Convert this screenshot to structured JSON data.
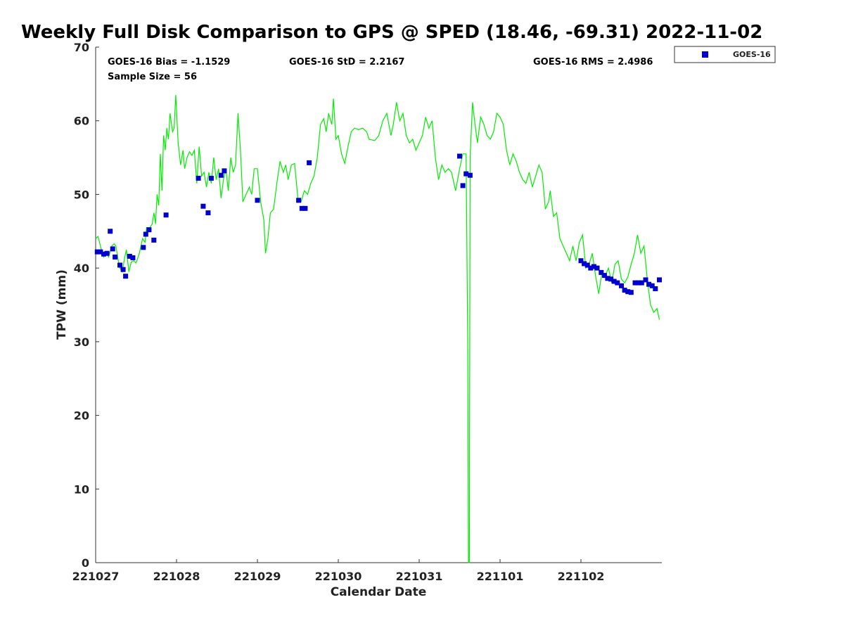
{
  "chart_data": {
    "type": "scatter",
    "title": "Weekly Full Disk Comparison to GPS @ SPED (18.46, -69.31) 2022-11-02",
    "xlabel": "Calendar Date",
    "ylabel": "TPW (mm)",
    "xlim": [
      0,
      7
    ],
    "ylim": [
      0,
      70
    ],
    "x_ticks": [
      0,
      1,
      2,
      3,
      4,
      5,
      6
    ],
    "x_tick_labels": [
      "221027",
      "221028",
      "221029",
      "221030",
      "221031",
      "221101",
      "221102"
    ],
    "y_ticks": [
      0,
      10,
      20,
      30,
      40,
      50,
      60,
      70
    ],
    "y_tick_labels": [
      "0",
      "10",
      "20",
      "30",
      "40",
      "50",
      "60",
      "70"
    ],
    "stats": {
      "bias": "GOES-16 Bias = -1.1529",
      "std": "GOES-16 StD = 2.2167",
      "rms": "GOES-16 RMS = 2.4986",
      "sample": "Sample Size = 56"
    },
    "legend": {
      "position": "outside-top-right",
      "entries": [
        "GOES-16"
      ]
    },
    "colors": {
      "gps": "#00ee00",
      "goes": "#0000cc"
    },
    "series": [
      {
        "name": "GPS",
        "style": "line",
        "points": [
          [
            0.0,
            44.0
          ],
          [
            0.03,
            44.3
          ],
          [
            0.07,
            42.5
          ],
          [
            0.1,
            41.5
          ],
          [
            0.13,
            42.0
          ],
          [
            0.16,
            41.5
          ],
          [
            0.2,
            43.0
          ],
          [
            0.23,
            43.3
          ],
          [
            0.25,
            43.0
          ],
          [
            0.28,
            41.0
          ],
          [
            0.3,
            40.0
          ],
          [
            0.33,
            39.5
          ],
          [
            0.36,
            41.5
          ],
          [
            0.38,
            42.5
          ],
          [
            0.41,
            39.5
          ],
          [
            0.44,
            40.8
          ],
          [
            0.47,
            41.0
          ],
          [
            0.5,
            40.7
          ],
          [
            0.54,
            42.0
          ],
          [
            0.58,
            44.0
          ],
          [
            0.61,
            43.5
          ],
          [
            0.63,
            45.5
          ],
          [
            0.67,
            45.5
          ],
          [
            0.7,
            46.0
          ],
          [
            0.72,
            47.5
          ],
          [
            0.74,
            46.0
          ],
          [
            0.76,
            50.0
          ],
          [
            0.78,
            48.5
          ],
          [
            0.8,
            55.5
          ],
          [
            0.82,
            50.5
          ],
          [
            0.84,
            58.0
          ],
          [
            0.86,
            56.0
          ],
          [
            0.88,
            59.0
          ],
          [
            0.9,
            57.5
          ],
          [
            0.92,
            61.0
          ],
          [
            0.95,
            58.5
          ],
          [
            0.97,
            59.0
          ],
          [
            0.99,
            63.5
          ],
          [
            1.02,
            57.0
          ],
          [
            1.05,
            54.0
          ],
          [
            1.08,
            56.0
          ],
          [
            1.1,
            53.5
          ],
          [
            1.13,
            55.0
          ],
          [
            1.16,
            55.8
          ],
          [
            1.19,
            55.3
          ],
          [
            1.22,
            56.0
          ],
          [
            1.25,
            51.5
          ],
          [
            1.28,
            56.5
          ],
          [
            1.31,
            52.5
          ],
          [
            1.34,
            53.0
          ],
          [
            1.37,
            51.0
          ],
          [
            1.4,
            53.0
          ],
          [
            1.43,
            51.5
          ],
          [
            1.46,
            55.0
          ],
          [
            1.49,
            52.0
          ],
          [
            1.52,
            53.5
          ],
          [
            1.55,
            49.5
          ],
          [
            1.58,
            52.0
          ],
          [
            1.61,
            53.5
          ],
          [
            1.64,
            50.5
          ],
          [
            1.67,
            55.0
          ],
          [
            1.7,
            53.0
          ],
          [
            1.73,
            54.0
          ],
          [
            1.76,
            61.0
          ],
          [
            1.79,
            56.0
          ],
          [
            1.82,
            49.0
          ],
          [
            1.86,
            50.0
          ],
          [
            1.9,
            51.0
          ],
          [
            1.93,
            50.0
          ],
          [
            1.96,
            53.5
          ],
          [
            2.0,
            53.5
          ],
          [
            2.04,
            49.0
          ],
          [
            2.08,
            46.5
          ],
          [
            2.1,
            42.0
          ],
          [
            2.13,
            44.0
          ],
          [
            2.16,
            47.5
          ],
          [
            2.2,
            48.0
          ],
          [
            2.24,
            51.5
          ],
          [
            2.28,
            54.5
          ],
          [
            2.32,
            53.0
          ],
          [
            2.35,
            54.0
          ],
          [
            2.38,
            52.0
          ],
          [
            2.42,
            54.0
          ],
          [
            2.46,
            54.2
          ],
          [
            2.5,
            49.5
          ],
          [
            2.54,
            49.0
          ],
          [
            2.58,
            50.5
          ],
          [
            2.62,
            50.0
          ],
          [
            2.66,
            51.5
          ],
          [
            2.7,
            52.5
          ],
          [
            2.74,
            55.0
          ],
          [
            2.78,
            59.5
          ],
          [
            2.82,
            60.3
          ],
          [
            2.85,
            58.5
          ],
          [
            2.88,
            61.0
          ],
          [
            2.92,
            59.5
          ],
          [
            2.94,
            63.0
          ],
          [
            2.97,
            57.5
          ],
          [
            3.0,
            58.0
          ],
          [
            3.04,
            55.5
          ],
          [
            3.08,
            54.2
          ],
          [
            3.12,
            56.5
          ],
          [
            3.16,
            58.5
          ],
          [
            3.2,
            59.0
          ],
          [
            3.25,
            58.8
          ],
          [
            3.3,
            59.0
          ],
          [
            3.35,
            58.5
          ],
          [
            3.38,
            57.5
          ],
          [
            3.45,
            57.3
          ],
          [
            3.5,
            58.0
          ],
          [
            3.55,
            60.0
          ],
          [
            3.6,
            61.0
          ],
          [
            3.65,
            58.0
          ],
          [
            3.68,
            59.5
          ],
          [
            3.72,
            62.5
          ],
          [
            3.76,
            60.0
          ],
          [
            3.8,
            61.0
          ],
          [
            3.84,
            58.0
          ],
          [
            3.88,
            57.0
          ],
          [
            3.92,
            57.5
          ],
          [
            3.96,
            56.0
          ],
          [
            4.0,
            57.0
          ],
          [
            4.04,
            58.0
          ],
          [
            4.08,
            60.5
          ],
          [
            4.12,
            59.0
          ],
          [
            4.16,
            60.0
          ],
          [
            4.2,
            55.0
          ],
          [
            4.24,
            52.0
          ],
          [
            4.28,
            54.0
          ],
          [
            4.32,
            53.0
          ],
          [
            4.36,
            53.5
          ],
          [
            4.4,
            53.0
          ],
          [
            4.45,
            50.5
          ],
          [
            4.5,
            53.5
          ],
          [
            4.54,
            55.5
          ],
          [
            4.58,
            55.5
          ],
          [
            4.6,
            30.0
          ],
          [
            4.61,
            0.0
          ],
          [
            4.62,
            0.0
          ],
          [
            4.63,
            55.0
          ],
          [
            4.66,
            62.5
          ],
          [
            4.69,
            59.5
          ],
          [
            4.72,
            57.0
          ],
          [
            4.76,
            60.5
          ],
          [
            4.8,
            59.5
          ],
          [
            4.84,
            58.0
          ],
          [
            4.88,
            57.5
          ],
          [
            4.92,
            58.5
          ],
          [
            4.96,
            61.0
          ],
          [
            5.0,
            60.5
          ],
          [
            5.04,
            59.5
          ],
          [
            5.08,
            56.0
          ],
          [
            5.12,
            54.0
          ],
          [
            5.16,
            55.5
          ],
          [
            5.2,
            54.5
          ],
          [
            5.24,
            53.0
          ],
          [
            5.28,
            52.0
          ],
          [
            5.32,
            51.5
          ],
          [
            5.36,
            53.0
          ],
          [
            5.4,
            51.0
          ],
          [
            5.44,
            52.5
          ],
          [
            5.48,
            54.0
          ],
          [
            5.52,
            53.0
          ],
          [
            5.56,
            48.0
          ],
          [
            5.6,
            49.0
          ],
          [
            5.62,
            50.5
          ],
          [
            5.66,
            47.0
          ],
          [
            5.7,
            47.5
          ],
          [
            5.74,
            44.0
          ],
          [
            5.78,
            43.0
          ],
          [
            5.82,
            42.0
          ],
          [
            5.86,
            41.0
          ],
          [
            5.9,
            43.0
          ],
          [
            5.94,
            41.0
          ],
          [
            5.98,
            43.5
          ],
          [
            6.02,
            44.5
          ],
          [
            6.06,
            40.0
          ],
          [
            6.1,
            40.5
          ],
          [
            6.14,
            42.0
          ],
          [
            6.18,
            39.0
          ],
          [
            6.22,
            36.5
          ],
          [
            6.26,
            39.5
          ],
          [
            6.3,
            39.0
          ],
          [
            6.34,
            40.0
          ],
          [
            6.38,
            38.0
          ],
          [
            6.42,
            40.5
          ],
          [
            6.46,
            41.0
          ],
          [
            6.5,
            38.5
          ],
          [
            6.54,
            38.0
          ],
          [
            6.58,
            38.8
          ],
          [
            6.62,
            40.5
          ],
          [
            6.66,
            42.0
          ],
          [
            6.7,
            44.5
          ],
          [
            6.74,
            42.0
          ],
          [
            6.78,
            43.0
          ],
          [
            6.82,
            38.5
          ],
          [
            6.86,
            35.0
          ],
          [
            6.9,
            34.0
          ],
          [
            6.94,
            34.5
          ],
          [
            6.97,
            33.0
          ]
        ]
      },
      {
        "name": "GOES-16",
        "style": "marker",
        "points": [
          [
            0.02,
            42.2
          ],
          [
            0.06,
            42.2
          ],
          [
            0.1,
            41.9
          ],
          [
            0.14,
            42.0
          ],
          [
            0.18,
            45.0
          ],
          [
            0.21,
            42.6
          ],
          [
            0.24,
            41.5
          ],
          [
            0.3,
            40.4
          ],
          [
            0.34,
            39.8
          ],
          [
            0.37,
            38.9
          ],
          [
            0.42,
            41.6
          ],
          [
            0.46,
            41.4
          ],
          [
            0.59,
            42.8
          ],
          [
            0.62,
            44.6
          ],
          [
            0.66,
            45.2
          ],
          [
            0.72,
            43.8
          ],
          [
            0.87,
            47.2
          ],
          [
            1.27,
            52.2
          ],
          [
            1.33,
            48.4
          ],
          [
            1.39,
            47.5
          ],
          [
            1.43,
            52.2
          ],
          [
            1.55,
            52.6
          ],
          [
            1.59,
            53.2
          ],
          [
            2.0,
            49.2
          ],
          [
            2.51,
            49.2
          ],
          [
            2.55,
            48.1
          ],
          [
            2.59,
            48.1
          ],
          [
            2.64,
            54.3
          ],
          [
            4.5,
            55.2
          ],
          [
            4.54,
            51.2
          ],
          [
            4.58,
            52.8
          ],
          [
            4.63,
            52.6
          ],
          [
            6.0,
            41.0
          ],
          [
            6.04,
            40.6
          ],
          [
            6.08,
            40.4
          ],
          [
            6.12,
            40.0
          ],
          [
            6.16,
            40.2
          ],
          [
            6.2,
            40.0
          ],
          [
            6.25,
            39.4
          ],
          [
            6.29,
            39.0
          ],
          [
            6.33,
            38.6
          ],
          [
            6.37,
            38.5
          ],
          [
            6.41,
            38.2
          ],
          [
            6.45,
            38.0
          ],
          [
            6.5,
            37.6
          ],
          [
            6.54,
            37.0
          ],
          [
            6.58,
            36.8
          ],
          [
            6.62,
            36.7
          ],
          [
            6.67,
            38.0
          ],
          [
            6.71,
            38.0
          ],
          [
            6.75,
            38.0
          ],
          [
            6.8,
            38.4
          ],
          [
            6.84,
            37.8
          ],
          [
            6.88,
            37.6
          ],
          [
            6.92,
            37.2
          ],
          [
            6.97,
            38.4
          ]
        ]
      }
    ]
  }
}
